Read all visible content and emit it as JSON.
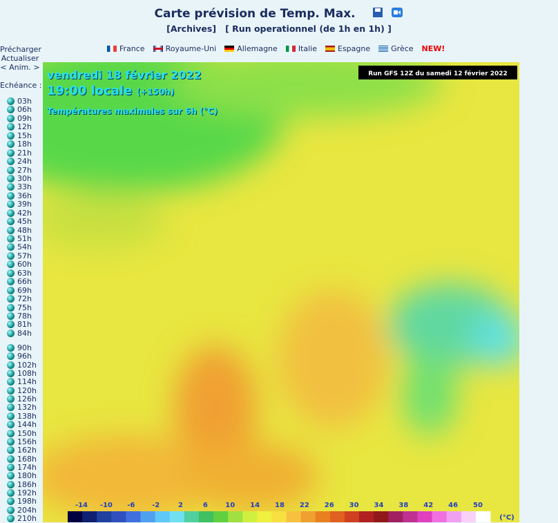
{
  "header": {
    "title": "Carte prévision de Temp. Max.",
    "archives": "[Archives]",
    "run": "[ Run operationnel (de 1h en 1h) ]"
  },
  "languages": [
    "France",
    "Royaume-Uni",
    "Allemagne",
    "Italie",
    "Espagne",
    "Grèce"
  ],
  "new_badge": "NEW!",
  "sidebar": {
    "preload": "Précharger",
    "refresh": "Actualiser",
    "anim": "< Anim. >",
    "echeance": "Echéance :",
    "hours_a": [
      "03h",
      "06h",
      "09h",
      "12h",
      "15h",
      "18h",
      "21h",
      "24h",
      "27h",
      "30h",
      "33h",
      "36h",
      "39h",
      "42h",
      "45h",
      "48h",
      "51h",
      "54h",
      "57h",
      "60h",
      "63h",
      "66h",
      "69h",
      "72h",
      "75h",
      "78h",
      "81h",
      "84h"
    ],
    "hours_b": [
      "90h",
      "96h",
      "102h",
      "108h",
      "114h",
      "120h",
      "126h",
      "132h",
      "138h",
      "144h",
      "150h",
      "156h",
      "162h",
      "168h",
      "174h",
      "180h",
      "186h",
      "192h",
      "198h",
      "204h",
      "210h"
    ]
  },
  "map": {
    "date": "vendredi 18 février 2022",
    "time": "19:00 locale",
    "offset": "(+150h)",
    "subtitle": "Températures maximales sur 6h (°C)",
    "run": "Run GFS 12Z du samedi 12 février 2022",
    "scale_labels": [
      "-14",
      "-10",
      "-6",
      "-2",
      "2",
      "6",
      "10",
      "14",
      "18",
      "22",
      "26",
      "30",
      "34",
      "38",
      "42",
      "46",
      "50"
    ],
    "unit": "(°C)"
  }
}
